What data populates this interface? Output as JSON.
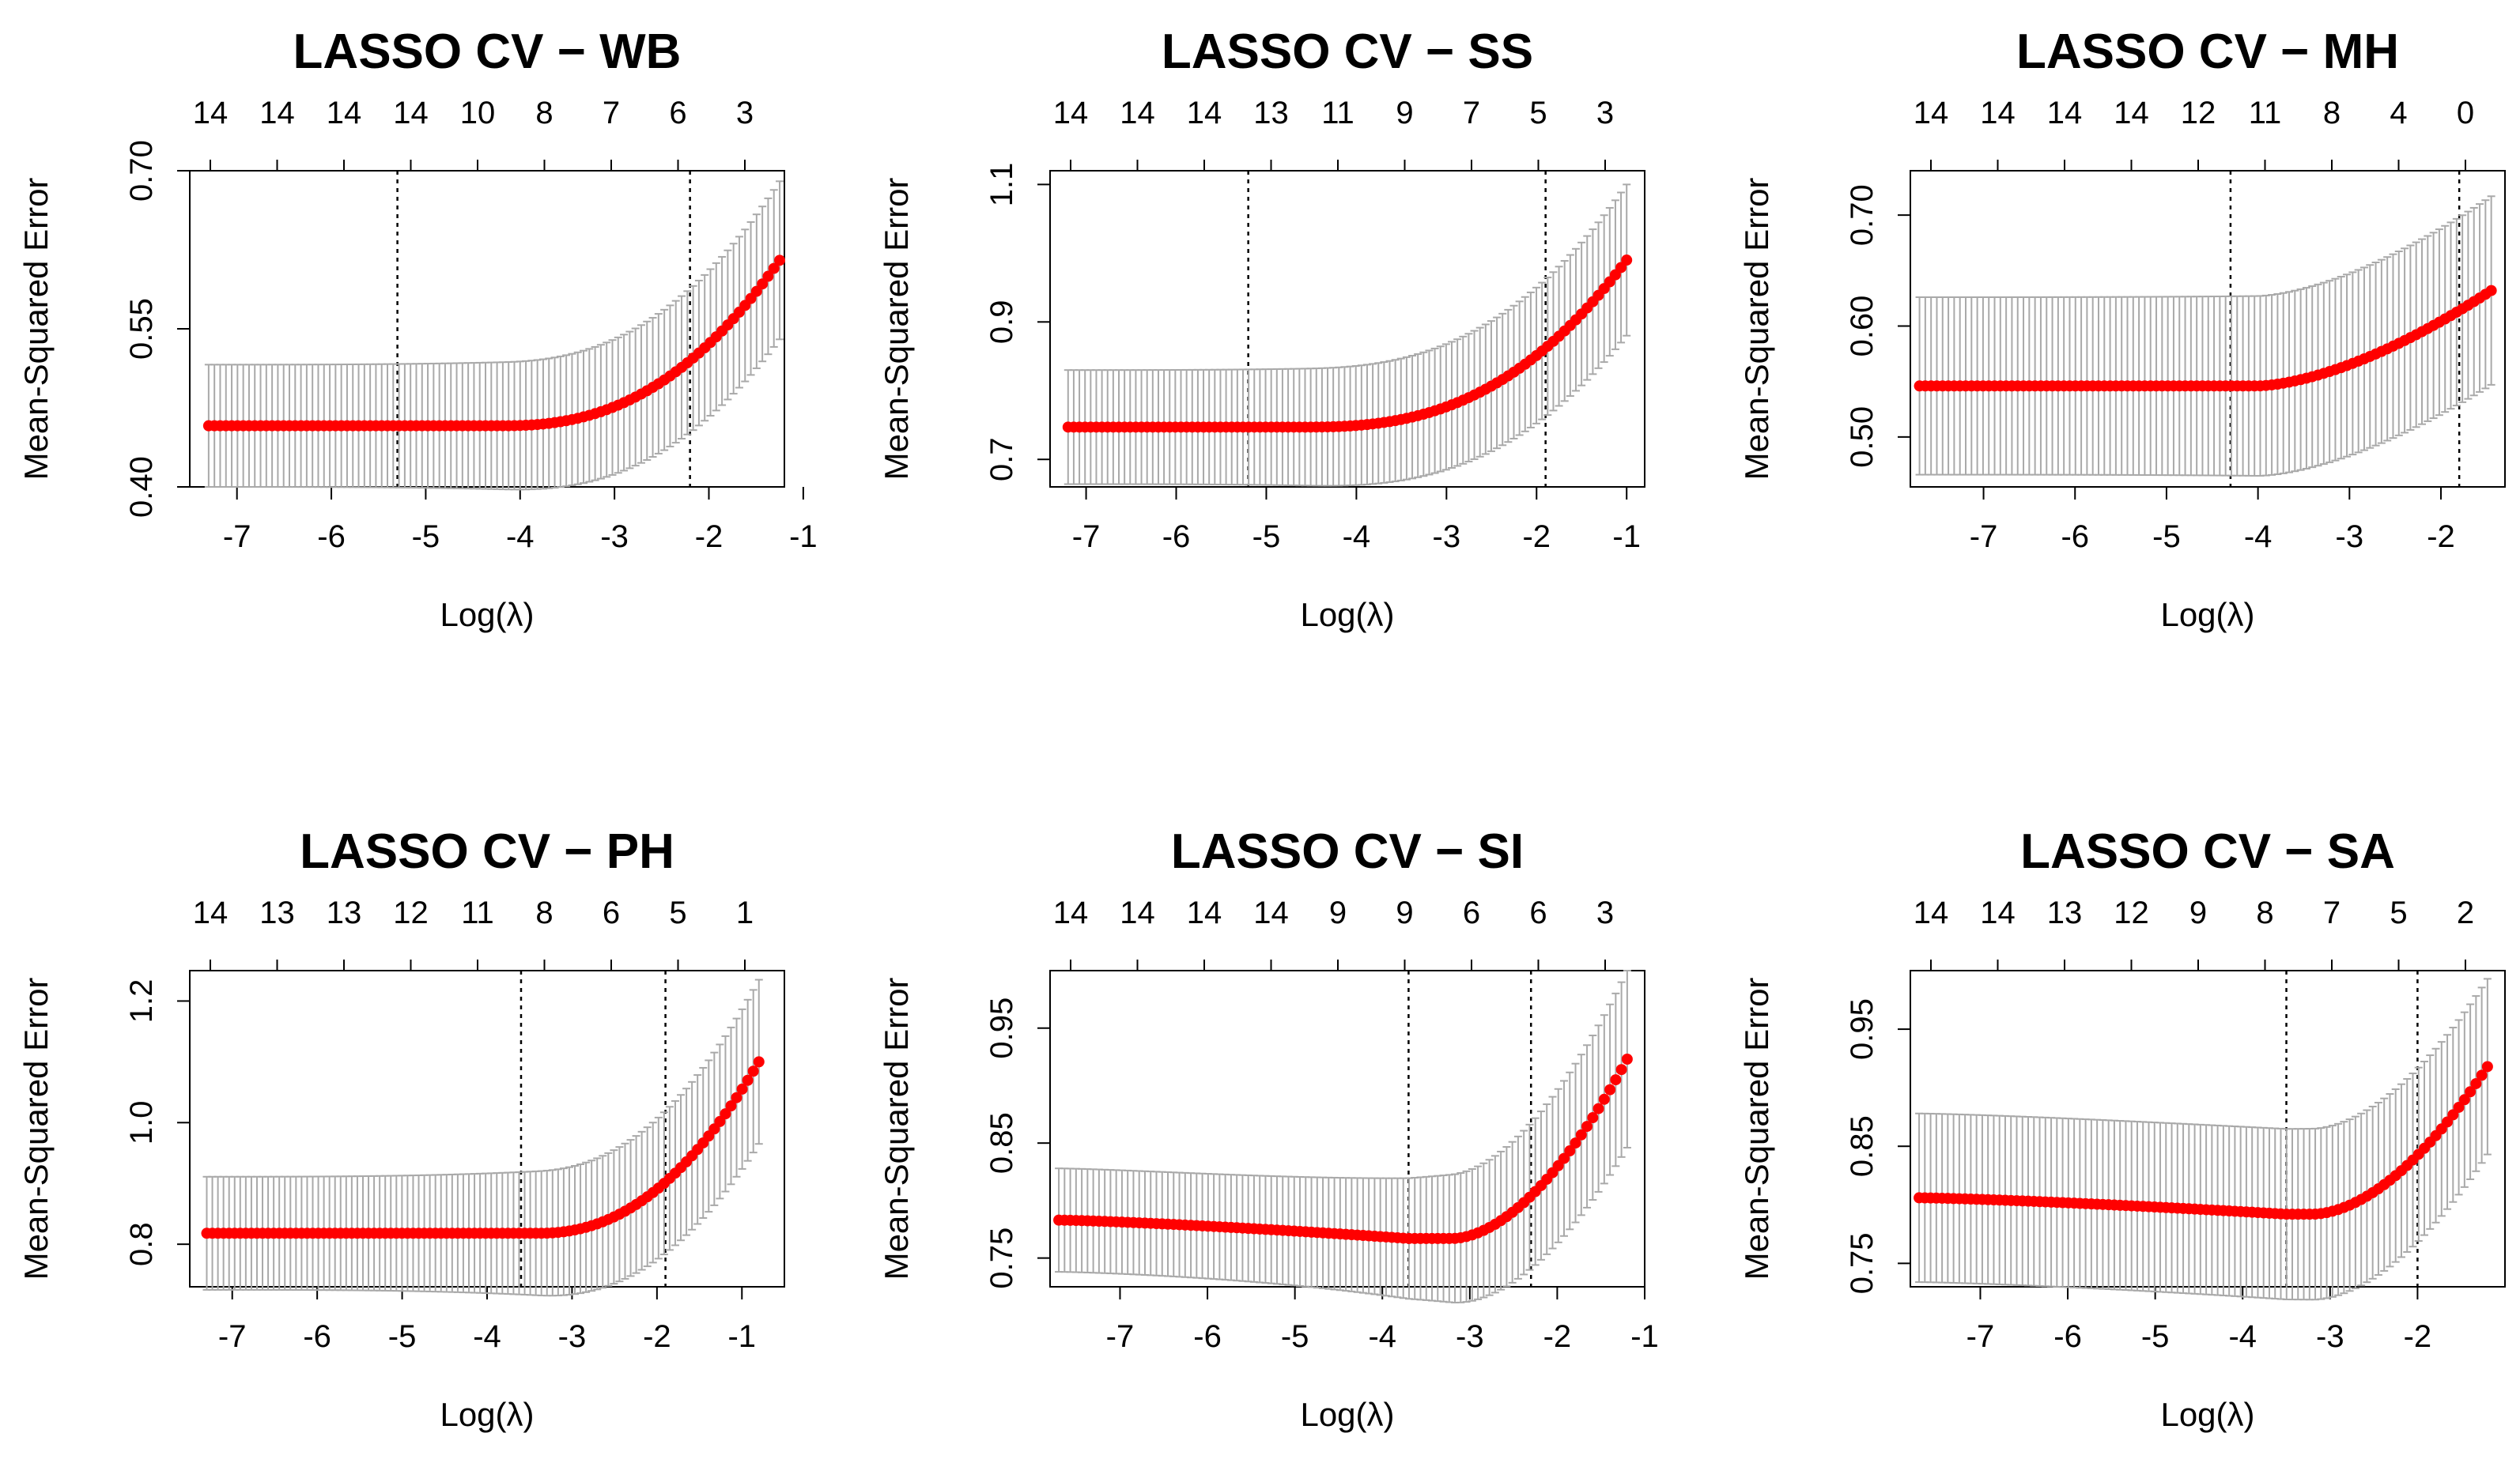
{
  "figure": {
    "xlabel": "Log(λ)",
    "ylabel": "Mean-Squared Error",
    "colors": {
      "points": "#ff0000",
      "errorbars": "#a9a9a9",
      "axes": "#000000",
      "reflines": "#000000"
    }
  },
  "chart_data": [
    {
      "type": "scatter",
      "title": "LASSO CV − WB",
      "xlabel": "Log(λ)",
      "ylabel": "Mean-Squared Error",
      "xlim": [
        -7.5,
        -1.2
      ],
      "ylim": [
        0.4,
        0.7
      ],
      "xticks": [
        -7,
        -6,
        -5,
        -4,
        -3,
        -2,
        -1
      ],
      "yticks": [
        0.4,
        0.55,
        0.7
      ],
      "ytick_labels": [
        "0.40",
        "0.55",
        "0.70"
      ],
      "top_tick_labels": [
        "14",
        "14",
        "14",
        "14",
        "10",
        "8",
        "7",
        "6",
        "3"
      ],
      "vlines": [
        -5.3,
        -2.2
      ],
      "curve": {
        "x_start": -7.3,
        "x_end": -1.25,
        "flat": 0.458,
        "rise_start": -4.2,
        "end": 0.615,
        "power": 2.4,
        "se_start": 0.058,
        "se_end": 0.075
      }
    },
    {
      "type": "scatter",
      "title": "LASSO CV − SS",
      "xlabel": "Log(λ)",
      "ylabel": "Mean-Squared Error",
      "xlim": [
        -7.4,
        -0.8
      ],
      "ylim": [
        0.66,
        1.12
      ],
      "xticks": [
        -7,
        -6,
        -5,
        -4,
        -3,
        -2,
        -1
      ],
      "yticks": [
        0.7,
        0.9,
        1.1
      ],
      "ytick_labels": [
        "0.7",
        "0.9",
        "1.1"
      ],
      "top_tick_labels": [
        "14",
        "14",
        "14",
        "13",
        "11",
        "9",
        "7",
        "5",
        "3"
      ],
      "vlines": [
        -5.2,
        -1.9
      ],
      "curve": {
        "x_start": -7.2,
        "x_end": -1.0,
        "flat": 0.747,
        "rise_start": -4.6,
        "end": 0.99,
        "power": 2.6,
        "se_start": 0.083,
        "se_end": 0.11
      }
    },
    {
      "type": "scatter",
      "title": "LASSO CV − MH",
      "xlabel": "Log(λ)",
      "ylabel": "Mean-Squared Error",
      "xlim": [
        -7.8,
        -1.3
      ],
      "ylim": [
        0.455,
        0.74
      ],
      "xticks": [
        -7,
        -6,
        -5,
        -4,
        -3,
        -2
      ],
      "yticks": [
        0.5,
        0.6,
        0.7
      ],
      "ytick_labels": [
        "0.50",
        "0.60",
        "0.70"
      ],
      "top_tick_labels": [
        "14",
        "14",
        "14",
        "14",
        "12",
        "11",
        "8",
        "4",
        "0"
      ],
      "vlines": [
        -4.3,
        -1.8
      ],
      "curve": {
        "x_start": -7.7,
        "x_end": -1.45,
        "flat": 0.546,
        "rise_start": -4.0,
        "end": 0.632,
        "power": 1.6,
        "se_start": 0.08,
        "se_end": 0.085
      }
    },
    {
      "type": "scatter",
      "title": "LASSO CV − PH",
      "xlabel": "Log(λ)",
      "ylabel": "Mean-Squared Error",
      "xlim": [
        -7.5,
        -0.5
      ],
      "ylim": [
        0.73,
        1.25
      ],
      "xticks": [
        -7,
        -6,
        -5,
        -4,
        -3,
        -2,
        -1
      ],
      "yticks": [
        0.8,
        1.0,
        1.2
      ],
      "ytick_labels": [
        "0.8",
        "1.0",
        "1.2"
      ],
      "top_tick_labels": [
        "14",
        "13",
        "13",
        "12",
        "11",
        "8",
        "6",
        "5",
        "1"
      ],
      "vlines": [
        -3.6,
        -1.9
      ],
      "curve": {
        "x_start": -7.3,
        "x_end": -0.8,
        "flat": 0.818,
        "rise_start": -3.4,
        "end": 1.1,
        "power": 2.2,
        "se_start": 0.093,
        "se_end": 0.135
      }
    },
    {
      "type": "scatter",
      "title": "LASSO CV − SI",
      "xlabel": "Log(λ)",
      "ylabel": "Mean-Squared Error",
      "xlim": [
        -7.8,
        -1.0
      ],
      "ylim": [
        0.725,
        1.0
      ],
      "xticks": [
        -7,
        -6,
        -5,
        -4,
        -3,
        -2,
        -1
      ],
      "yticks": [
        0.75,
        0.85,
        0.95
      ],
      "ytick_labels": [
        "0.75",
        "0.85",
        "0.95"
      ],
      "top_tick_labels": [
        "14",
        "14",
        "14",
        "14",
        "9",
        "9",
        "6",
        "6",
        "3"
      ],
      "vlines": [
        -3.7,
        -2.3
      ],
      "curve": {
        "x_start": -7.7,
        "x_end": -1.2,
        "flat": 0.783,
        "dip_at": -3.7,
        "dip_min": 0.767,
        "rise_start": -3.2,
        "end": 0.923,
        "power": 1.8,
        "se_start": 0.045,
        "se_end": 0.077
      }
    },
    {
      "type": "scatter",
      "title": "LASSO CV − SA",
      "xlabel": "Log(λ)",
      "ylabel": "Mean-Squared Error",
      "xlim": [
        -7.8,
        -1.0
      ],
      "ylim": [
        0.73,
        1.0
      ],
      "xticks": [
        -7,
        -6,
        -5,
        -4,
        -3,
        -2
      ],
      "yticks": [
        0.75,
        0.85,
        0.95
      ],
      "ytick_labels": [
        "0.75",
        "0.85",
        "0.95"
      ],
      "top_tick_labels": [
        "14",
        "14",
        "13",
        "12",
        "9",
        "8",
        "7",
        "5",
        "2"
      ],
      "vlines": [
        -3.5,
        -2.0
      ],
      "curve": {
        "x_start": -7.7,
        "x_end": -1.2,
        "flat": 0.806,
        "dip_at": -3.5,
        "dip_min": 0.792,
        "rise_start": -3.2,
        "end": 0.918,
        "power": 1.8,
        "se_start": 0.072,
        "se_end": 0.075
      }
    }
  ]
}
